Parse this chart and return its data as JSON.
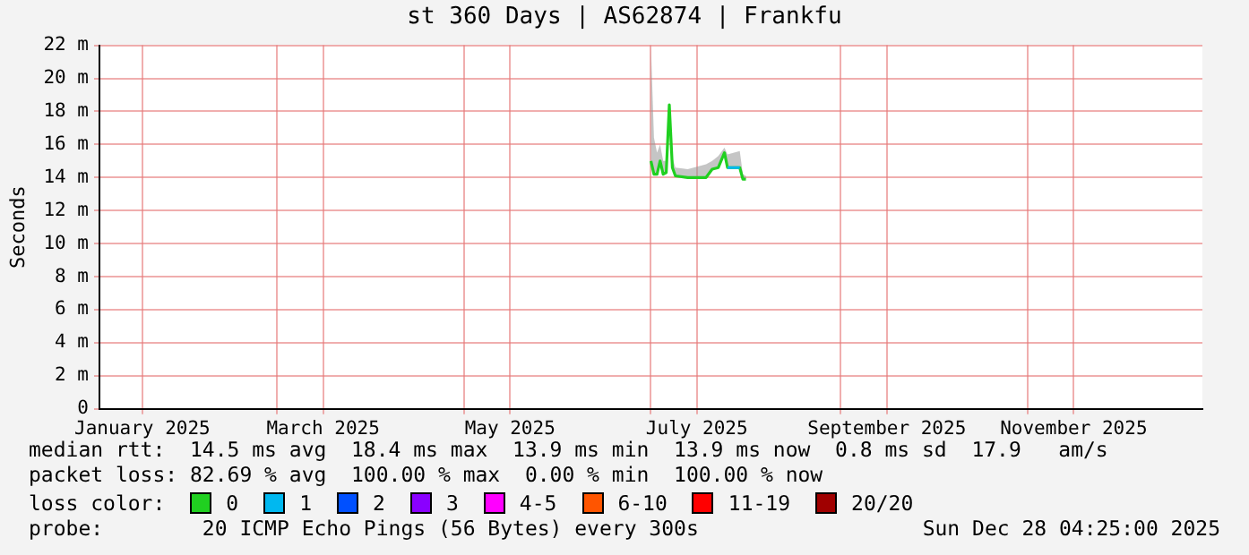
{
  "chart_data": {
    "type": "line",
    "title": "st 360 Days | AS62874 | Frankfu",
    "ylabel": "Seconds",
    "x": [
      "2025-07-01",
      "2025-07-02",
      "2025-07-03",
      "2025-07-04",
      "2025-07-05",
      "2025-07-06",
      "2025-07-07",
      "2025-07-08",
      "2025-07-09",
      "2025-07-13",
      "2025-07-19",
      "2025-07-21",
      "2025-07-23",
      "2025-07-25",
      "2025-07-26",
      "2025-07-30",
      "2025-07-31",
      "2025-08-01"
    ],
    "series": [
      {
        "name": "0",
        "color": "#20d020",
        "values": [
          15.0,
          14.2,
          14.2,
          15.0,
          14.2,
          14.3,
          18.4,
          14.6,
          14.1,
          14.0,
          14.0,
          14.5,
          14.6,
          15.5,
          14.6,
          14.6,
          13.9,
          13.9
        ],
        "lower": [
          15.0,
          14.2,
          14.2,
          15.0,
          14.2,
          14.3,
          18.4,
          14.6,
          14.1,
          14.0,
          14.0,
          14.5,
          14.6,
          15.5,
          14.6,
          14.6,
          13.9,
          13.9
        ],
        "upper": [
          22.0,
          16.4,
          15.5,
          16.0,
          15.0,
          15.0,
          18.5,
          15.2,
          14.6,
          14.5,
          14.8,
          15.0,
          15.3,
          15.8,
          15.4,
          15.6,
          14.2,
          14.1
        ]
      },
      {
        "name": "1",
        "color": "#00b8f0",
        "values": [
          null,
          null,
          null,
          null,
          null,
          null,
          null,
          null,
          null,
          null,
          null,
          null,
          null,
          null,
          14.6,
          14.6,
          null,
          null
        ]
      },
      {
        "name": "2",
        "color": "#0050ff",
        "values": [
          null,
          null,
          null,
          null,
          null,
          null,
          null,
          null,
          null,
          null,
          null,
          null,
          null,
          null,
          null,
          null,
          null,
          null
        ]
      },
      {
        "name": "3",
        "color": "#8a00ff",
        "values": [
          null,
          null,
          null,
          null,
          null,
          null,
          null,
          null,
          null,
          null,
          null,
          null,
          null,
          null,
          null,
          null,
          null,
          null
        ]
      },
      {
        "name": "4-5",
        "color": "#ff00ff",
        "values": [
          null,
          null,
          null,
          null,
          null,
          null,
          null,
          null,
          null,
          null,
          null,
          null,
          null,
          null,
          null,
          null,
          null,
          null
        ]
      },
      {
        "name": "6-10",
        "color": "#ff5500",
        "values": [
          null,
          null,
          null,
          null,
          null,
          null,
          null,
          null,
          null,
          null,
          null,
          null,
          null,
          null,
          null,
          null,
          null,
          null
        ]
      },
      {
        "name": "11-19",
        "color": "#ff0000",
        "values": [
          null,
          null,
          null,
          null,
          null,
          null,
          null,
          null,
          null,
          null,
          null,
          null,
          null,
          null,
          null,
          null,
          null,
          null
        ]
      },
      {
        "name": "20/20",
        "color": "#a00000",
        "values": [
          null,
          null,
          null,
          null,
          null,
          null,
          null,
          null,
          null,
          null,
          null,
          null,
          null,
          null,
          null,
          null,
          null,
          null
        ]
      }
    ],
    "legend": "bottom",
    "legend_title": "loss color:",
    "grid": true,
    "marker": "none",
    "line_style": "solid",
    "xlim": [
      "2025-01-02",
      "2025-12-28"
    ],
    "xticks": [
      {
        "value": "2025-01-16",
        "label": "January 2025"
      },
      {
        "value": "2025-03-01",
        "label": null
      },
      {
        "value": "2025-03-16",
        "label": "March 2025"
      },
      {
        "value": "2025-05-01",
        "label": null
      },
      {
        "value": "2025-05-16",
        "label": "May 2025"
      },
      {
        "value": "2025-07-01",
        "label": null
      },
      {
        "value": "2025-07-16",
        "label": "July 2025"
      },
      {
        "value": "2025-09-01",
        "label": null
      },
      {
        "value": "2025-09-16",
        "label": "September 2025"
      },
      {
        "value": "2025-11-01",
        "label": null
      },
      {
        "value": "2025-11-16",
        "label": "November 2025"
      }
    ],
    "ylim": [
      0,
      22
    ],
    "yticks": [
      0,
      {
        "value": 2,
        "label": "2 m"
      },
      {
        "value": 4,
        "label": "4 m"
      },
      {
        "value": 6,
        "label": "6 m"
      },
      {
        "value": 8,
        "label": "8 m"
      },
      {
        "value": 10,
        "label": "10 m"
      },
      {
        "value": 12,
        "label": "12 m"
      },
      {
        "value": 14,
        "label": "14 m"
      },
      {
        "value": 16,
        "label": "16 m"
      },
      {
        "value": 18,
        "label": "18 m"
      },
      {
        "value": 20,
        "label": "20 m"
      },
      {
        "value": 22,
        "label": "22 m"
      }
    ],
    "annotations": [
      "median rtt:  14.5 ms avg  18.4 ms max  13.9 ms min  13.9 ms now  0.8 ms sd  17.9   am/s",
      "packet loss: 82.69 % avg  100.00 % max  0.00 % min  100.00 % now",
      "probe:        20 ICMP Echo Pings (56 Bytes) every 300s",
      "Sun Dec 28 04:25:00 2025"
    ]
  }
}
